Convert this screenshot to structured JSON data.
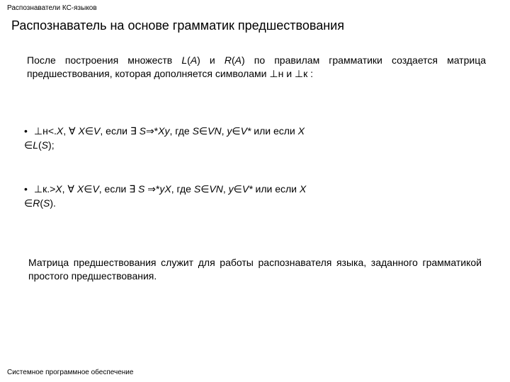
{
  "colors": {
    "background": "#ffffff",
    "text": "#000000"
  },
  "typography": {
    "header_fontsize": 10,
    "title_fontsize": 18,
    "body_fontsize": 14,
    "footer_fontsize": 10,
    "font_family": "Arial"
  },
  "header": "Распознаватели КС-языков",
  "title": "Распознаватель на основе грамматик предшествования",
  "para1_prefix": "После построения множеств ",
  "sym_L": "L",
  "sym_openA": "(",
  "sym_A": "A",
  "sym_closeA": ")",
  "para1_mid1": " и ",
  "sym_R": "R",
  "para1_tail": " по правилам грамматики создается матрица предшествования, которая дополняется символами ⊥н и ⊥к :",
  "bullet_dot": "•",
  "b1_perp": "⊥н",
  "b1_rel": "<.",
  "sym_X": "X",
  "b1_comma": ", ",
  "sym_forall": "∀",
  "sp": " ",
  "sym_in": "∈",
  "sym_V": "V",
  "b1_if": ", если ",
  "sym_exists": "∃",
  "sym_S": "S",
  "sym_deriv": "⇒*",
  "sym_y": "y",
  "b1_where": ", где ",
  "sym_VN": "VN",
  "sym_Vstar": "V*",
  "b1_or": " или если ",
  "b1_end": ";",
  "b2_perp": "⊥к",
  "b2_rel": ".>",
  "b2_end": ".",
  "para2": "Матрица предшествования служит для работы распознавателя языка, заданного грамматикой простого предшествования.",
  "footer": "Системное программное обеспечение"
}
